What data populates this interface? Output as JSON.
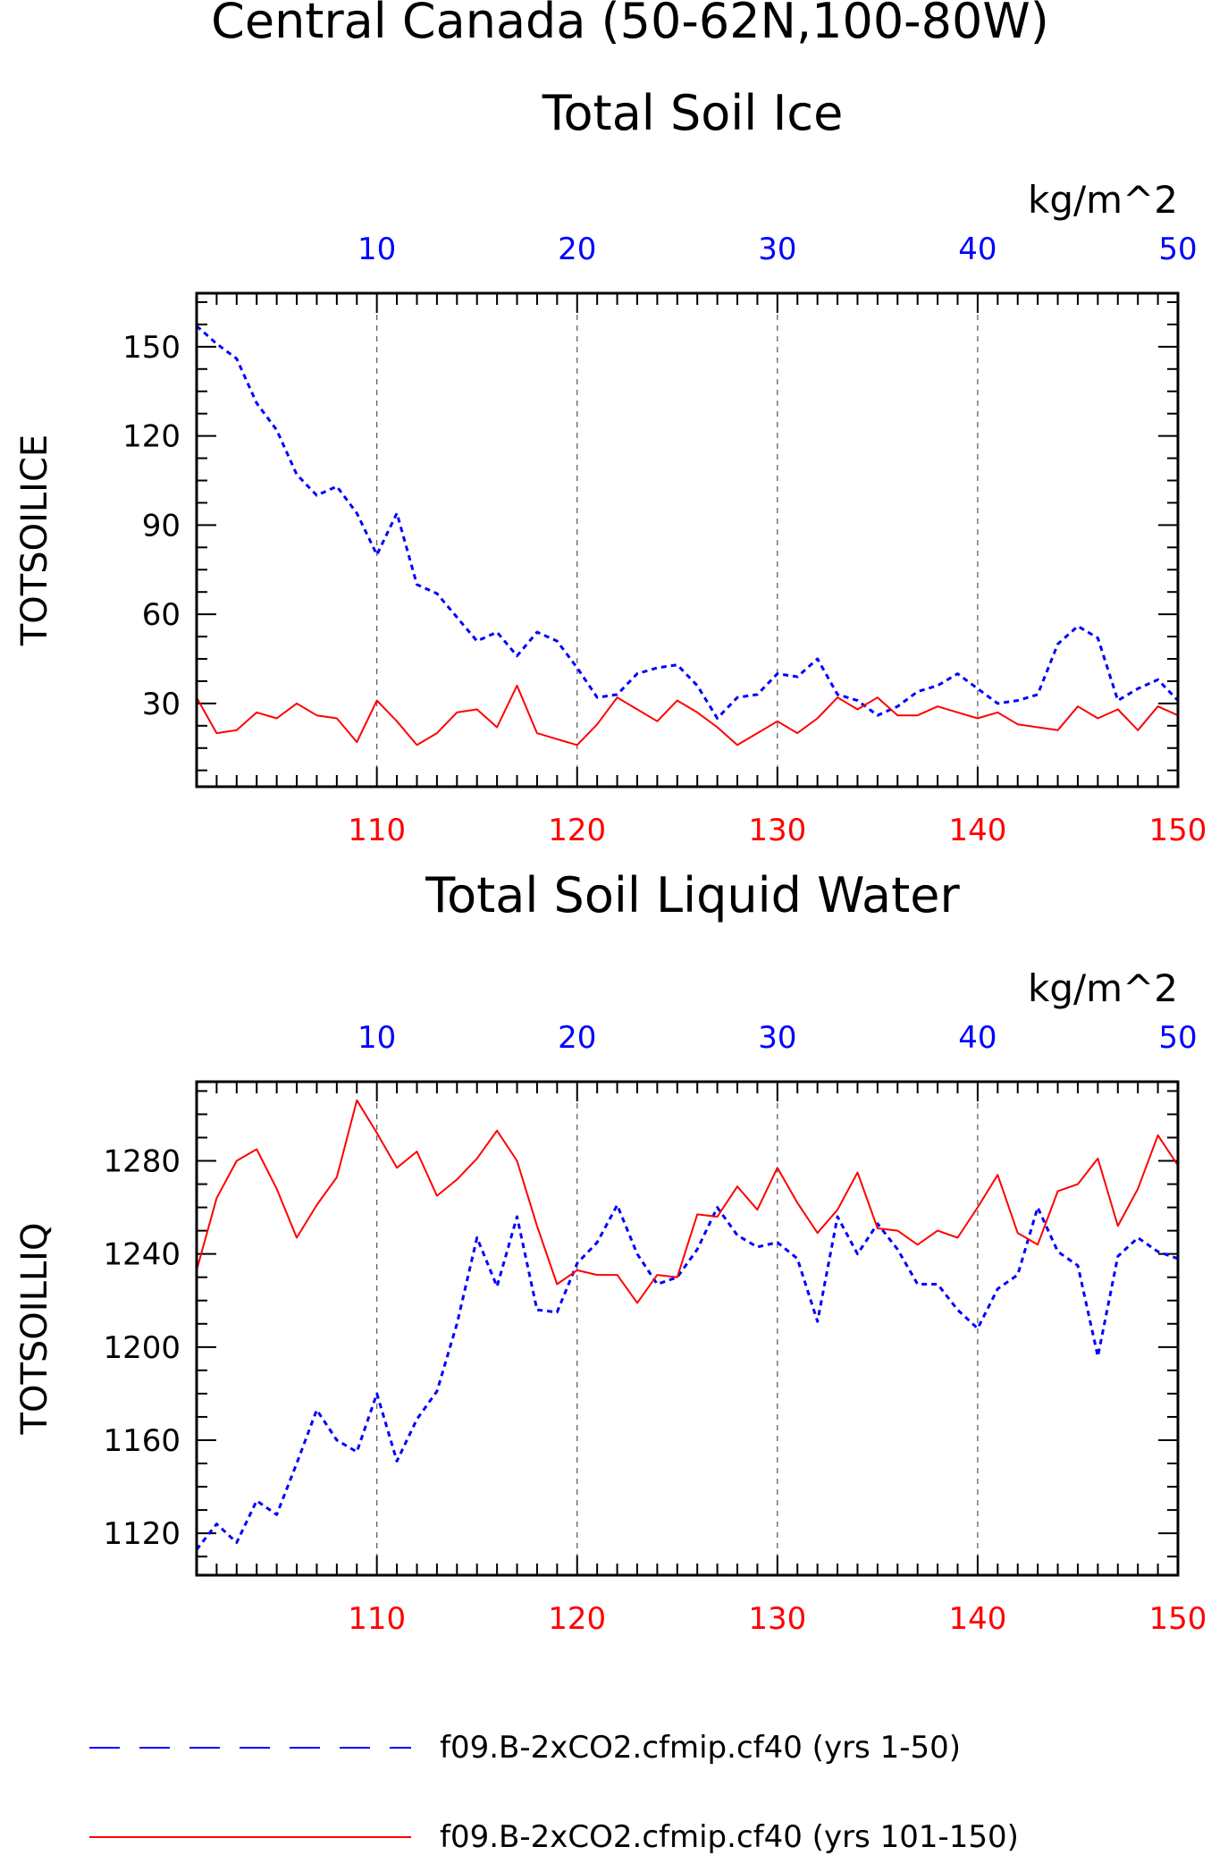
{
  "title_line1": "Central Canada (50-62N,100-80W)",
  "colors": {
    "series1": "#0000ff",
    "series2": "#ff0000",
    "axis": "#000000",
    "grid": "#555555"
  },
  "legend": [
    {
      "label": "f09.B-2xCO2.cfmip.cf40 (yrs 1-50)",
      "style": "dashed",
      "color": "#0000ff"
    },
    {
      "label": "f09.B-2xCO2.cfmip.cf40 (yrs 101-150)",
      "style": "solid",
      "color": "#ff0000"
    }
  ],
  "chart_data": [
    {
      "type": "line",
      "title": "Total Soil Ice",
      "ylabel": "TOTSOILICE",
      "units": "kg/m^2",
      "ylim": [
        2,
        168
      ],
      "yticks": [
        30,
        60,
        90,
        120,
        150
      ],
      "ytick_labels": [
        "30",
        "60",
        "90",
        "120",
        "150"
      ],
      "grid": "vertical dashed at top ticks",
      "top_axis": {
        "range": [
          1,
          50
        ],
        "ticks": [
          10,
          20,
          30,
          40,
          50
        ],
        "tick_labels": [
          "10",
          "20",
          "30",
          "40",
          "50"
        ],
        "color": "#0000ff"
      },
      "bottom_axis": {
        "range": [
          101,
          150
        ],
        "ticks": [
          110,
          120,
          130,
          140,
          150
        ],
        "tick_labels": [
          "110",
          "120",
          "130",
          "140",
          "150"
        ],
        "color": "#ff0000"
      },
      "series": [
        {
          "name": "f09.B-2xCO2.cfmip.cf40 (yrs 1-50)",
          "axis": "top",
          "style": "dashed",
          "color": "#0000ff",
          "x": [
            1,
            2,
            3,
            4,
            5,
            6,
            7,
            8,
            9,
            10,
            11,
            12,
            13,
            14,
            15,
            16,
            17,
            18,
            19,
            20,
            21,
            22,
            23,
            24,
            25,
            26,
            27,
            28,
            29,
            30,
            31,
            32,
            33,
            34,
            35,
            36,
            37,
            38,
            39,
            40,
            41,
            42,
            43,
            44,
            45,
            46,
            47,
            48,
            49,
            50
          ],
          "values": [
            157,
            151,
            146,
            131,
            122,
            107,
            100,
            103,
            94,
            80,
            94,
            70,
            67,
            59,
            51,
            54,
            46,
            54,
            51,
            42,
            32,
            33,
            40,
            42,
            43,
            36,
            25,
            32,
            33,
            40,
            39,
            45,
            33,
            31,
            26,
            29,
            34,
            36,
            40,
            35,
            30,
            31,
            33,
            50,
            56,
            52,
            31,
            35,
            38,
            31
          ]
        },
        {
          "name": "f09.B-2xCO2.cfmip.cf40 (yrs 101-150)",
          "axis": "bottom",
          "style": "solid",
          "color": "#ff0000",
          "x": [
            101,
            102,
            103,
            104,
            105,
            106,
            107,
            108,
            109,
            110,
            111,
            112,
            113,
            114,
            115,
            116,
            117,
            118,
            119,
            120,
            121,
            122,
            123,
            124,
            125,
            126,
            127,
            128,
            129,
            130,
            131,
            132,
            133,
            134,
            135,
            136,
            137,
            138,
            139,
            140,
            141,
            142,
            143,
            144,
            145,
            146,
            147,
            148,
            149,
            150
          ],
          "values": [
            32,
            20,
            21,
            27,
            25,
            30,
            26,
            25,
            17,
            31,
            24,
            16,
            20,
            27,
            28,
            22,
            36,
            20,
            18,
            16,
            23,
            32,
            28,
            24,
            31,
            27,
            22,
            16,
            20,
            24,
            20,
            25,
            32,
            28,
            32,
            26,
            26,
            29,
            27,
            25,
            27,
            23,
            22,
            21,
            29,
            25,
            28,
            21,
            29,
            26
          ]
        }
      ]
    },
    {
      "type": "line",
      "title": "Total Soil Liquid Water",
      "ylabel": "TOTSOILLIQ",
      "units": "kg/m^2",
      "ylim": [
        1102,
        1314
      ],
      "yticks": [
        1120,
        1160,
        1200,
        1240,
        1280
      ],
      "ytick_labels": [
        "1120",
        "1160",
        "1200",
        "1240",
        "1280"
      ],
      "grid": "vertical dashed at top ticks",
      "top_axis": {
        "range": [
          1,
          50
        ],
        "ticks": [
          10,
          20,
          30,
          40,
          50
        ],
        "tick_labels": [
          "10",
          "20",
          "30",
          "40",
          "50"
        ],
        "color": "#0000ff"
      },
      "bottom_axis": {
        "range": [
          101,
          150
        ],
        "ticks": [
          110,
          120,
          130,
          140,
          150
        ],
        "tick_labels": [
          "110",
          "120",
          "130",
          "140",
          "150"
        ],
        "color": "#ff0000"
      },
      "series": [
        {
          "name": "f09.B-2xCO2.cfmip.cf40 (yrs 1-50)",
          "axis": "top",
          "style": "dashed",
          "color": "#0000ff",
          "x": [
            1,
            2,
            3,
            4,
            5,
            6,
            7,
            8,
            9,
            10,
            11,
            12,
            13,
            14,
            15,
            16,
            17,
            18,
            19,
            20,
            21,
            22,
            23,
            24,
            25,
            26,
            27,
            28,
            29,
            30,
            31,
            32,
            33,
            34,
            35,
            36,
            37,
            38,
            39,
            40,
            41,
            42,
            43,
            44,
            45,
            46,
            47,
            48,
            49,
            50
          ],
          "values": [
            1113,
            1124,
            1116,
            1134,
            1128,
            1150,
            1173,
            1160,
            1155,
            1180,
            1151,
            1169,
            1181,
            1210,
            1247,
            1226,
            1256,
            1216,
            1215,
            1236,
            1245,
            1261,
            1240,
            1227,
            1230,
            1242,
            1260,
            1248,
            1243,
            1245,
            1238,
            1211,
            1256,
            1240,
            1253,
            1242,
            1227,
            1227,
            1216,
            1208,
            1225,
            1231,
            1260,
            1241,
            1235,
            1196,
            1239,
            1247,
            1241,
            1238
          ]
        },
        {
          "name": "f09.B-2xCO2.cfmip.cf40 (yrs 101-150)",
          "axis": "bottom",
          "style": "solid",
          "color": "#ff0000",
          "x": [
            101,
            102,
            103,
            104,
            105,
            106,
            107,
            108,
            109,
            110,
            111,
            112,
            113,
            114,
            115,
            116,
            117,
            118,
            119,
            120,
            121,
            122,
            123,
            124,
            125,
            126,
            127,
            128,
            129,
            130,
            131,
            132,
            133,
            134,
            135,
            136,
            137,
            138,
            139,
            140,
            141,
            142,
            143,
            144,
            145,
            146,
            147,
            148,
            149,
            150
          ],
          "values": [
            1233,
            1264,
            1280,
            1285,
            1268,
            1247,
            1261,
            1273,
            1306,
            1292,
            1277,
            1284,
            1265,
            1272,
            1281,
            1293,
            1280,
            1252,
            1227,
            1233,
            1231,
            1231,
            1219,
            1231,
            1230,
            1257,
            1256,
            1269,
            1259,
            1277,
            1262,
            1249,
            1259,
            1275,
            1251,
            1250,
            1244,
            1250,
            1247,
            1260,
            1274,
            1249,
            1244,
            1267,
            1270,
            1281,
            1252,
            1268,
            1291,
            1278
          ]
        }
      ]
    }
  ]
}
